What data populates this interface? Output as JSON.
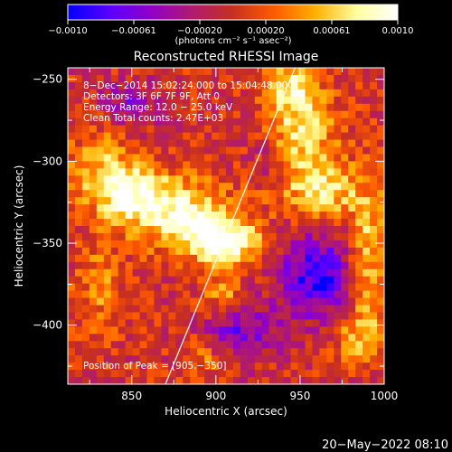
{
  "chart_data": {
    "type": "heatmap",
    "title": "Reconstructed RHESSI Image",
    "xlabel": "Heliocentric X (arcsec)",
    "ylabel": "Heliocentric Y (arcsec)",
    "xlim": [
      812,
      1000
    ],
    "ylim": [
      -436,
      -243
    ],
    "x_ticks": [
      850,
      900,
      950,
      1000
    ],
    "y_ticks": [
      -250,
      -300,
      -350,
      -400
    ],
    "x_tick_labels": [
      "850",
      "900",
      "950",
      "1000"
    ],
    "y_tick_labels": [
      "−250",
      "−300",
      "−350",
      "−400"
    ],
    "colorbar": {
      "range": [
        -0.001,
        0.001
      ],
      "tick_labels": [
        "−0.0010",
        "−0.00061",
        "−0.00020",
        "0.00020",
        "0.00061",
        "0.0010"
      ],
      "unit_label": "(photons cm⁻² s⁻¹ asec⁻²)",
      "colors": [
        "#0000ff",
        "#5a00ff",
        "#9000c8",
        "#b01a70",
        "#c8301e",
        "#ff5a00",
        "#ffb000",
        "#ffffa0",
        "#ffffff"
      ]
    },
    "annotations": [
      "8−Dec−2014 15:02:24.000 to 15:04:48.000",
      "Detectors: 3F 6F 7F 9F, Att 0",
      "Energy Range: 12.0 − 25.0 keV",
      "Clean     Total counts: 2.47E+03",
      "Position of Peak = [905,−350]"
    ],
    "peak": {
      "x": 905,
      "y": -350
    },
    "limb_line": [
      {
        "x": 870,
        "y": -436
      },
      {
        "x": 947,
        "y": -243
      }
    ],
    "sources": [
      {
        "x": 905,
        "y": -350,
        "value": 0.00105,
        "sx": 14,
        "sy": 9
      },
      {
        "x": 880,
        "y": -333,
        "value": 0.00085,
        "sx": 22,
        "sy": 14
      },
      {
        "x": 848,
        "y": -318,
        "value": 0.00075,
        "sx": 16,
        "sy": 13
      },
      {
        "x": 830,
        "y": -300,
        "value": 0.0004,
        "sx": 12,
        "sy": 16
      },
      {
        "x": 905,
        "y": -382,
        "value": 0.00045,
        "sx": 8,
        "sy": 8
      },
      {
        "x": 950,
        "y": -285,
        "value": 0.0007,
        "sx": 14,
        "sy": 24
      },
      {
        "x": 965,
        "y": -318,
        "value": 0.0006,
        "sx": 14,
        "sy": 12
      },
      {
        "x": 945,
        "y": -255,
        "value": 0.0005,
        "sx": 10,
        "sy": 10
      },
      {
        "x": 990,
        "y": -355,
        "value": 0.0006,
        "sx": 8,
        "sy": 30
      },
      {
        "x": 985,
        "y": -405,
        "value": 0.0005,
        "sx": 10,
        "sy": 12
      },
      {
        "x": 830,
        "y": -378,
        "value": 0.00035,
        "sx": 10,
        "sy": 20
      },
      {
        "x": 895,
        "y": -420,
        "value": 0.00035,
        "sx": 10,
        "sy": 8
      },
      {
        "x": 960,
        "y": -370,
        "value": -0.00085,
        "sx": 16,
        "sy": 18
      },
      {
        "x": 915,
        "y": -405,
        "value": -0.0006,
        "sx": 14,
        "sy": 12
      },
      {
        "x": 850,
        "y": -265,
        "value": -0.0004,
        "sx": 14,
        "sy": 10
      },
      {
        "x": 935,
        "y": -300,
        "value": -0.00035,
        "sx": 10,
        "sy": 10
      }
    ]
  },
  "footer": {
    "timestamp": "20−May−2022 08:10"
  }
}
